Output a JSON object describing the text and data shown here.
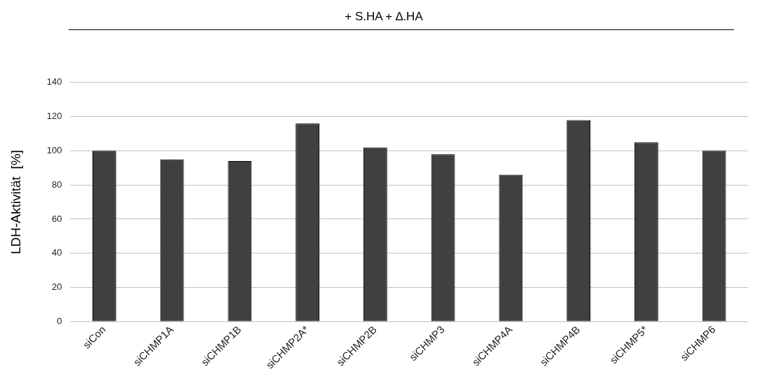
{
  "chart_data": {
    "type": "bar",
    "title": "+ S.HA + ∆.HA",
    "ylabel": "LDH-Aktivität  [%]",
    "categories": [
      "siCon",
      "siCHMP1A",
      "siCHMP1B",
      "siCHMP2A*",
      "siCHMP2B",
      "siCHMP3",
      "siCHMP4A",
      "siCHMP4B",
      "siCHMP5*",
      "siCHMP6"
    ],
    "values": [
      100,
      95,
      94,
      116,
      102,
      98,
      86,
      118,
      105,
      100
    ],
    "color": "#404040",
    "ylim": [
      0,
      140
    ],
    "yticks": [
      0,
      20,
      40,
      60,
      80,
      100,
      120,
      140
    ],
    "grid": "y",
    "legend": false
  }
}
